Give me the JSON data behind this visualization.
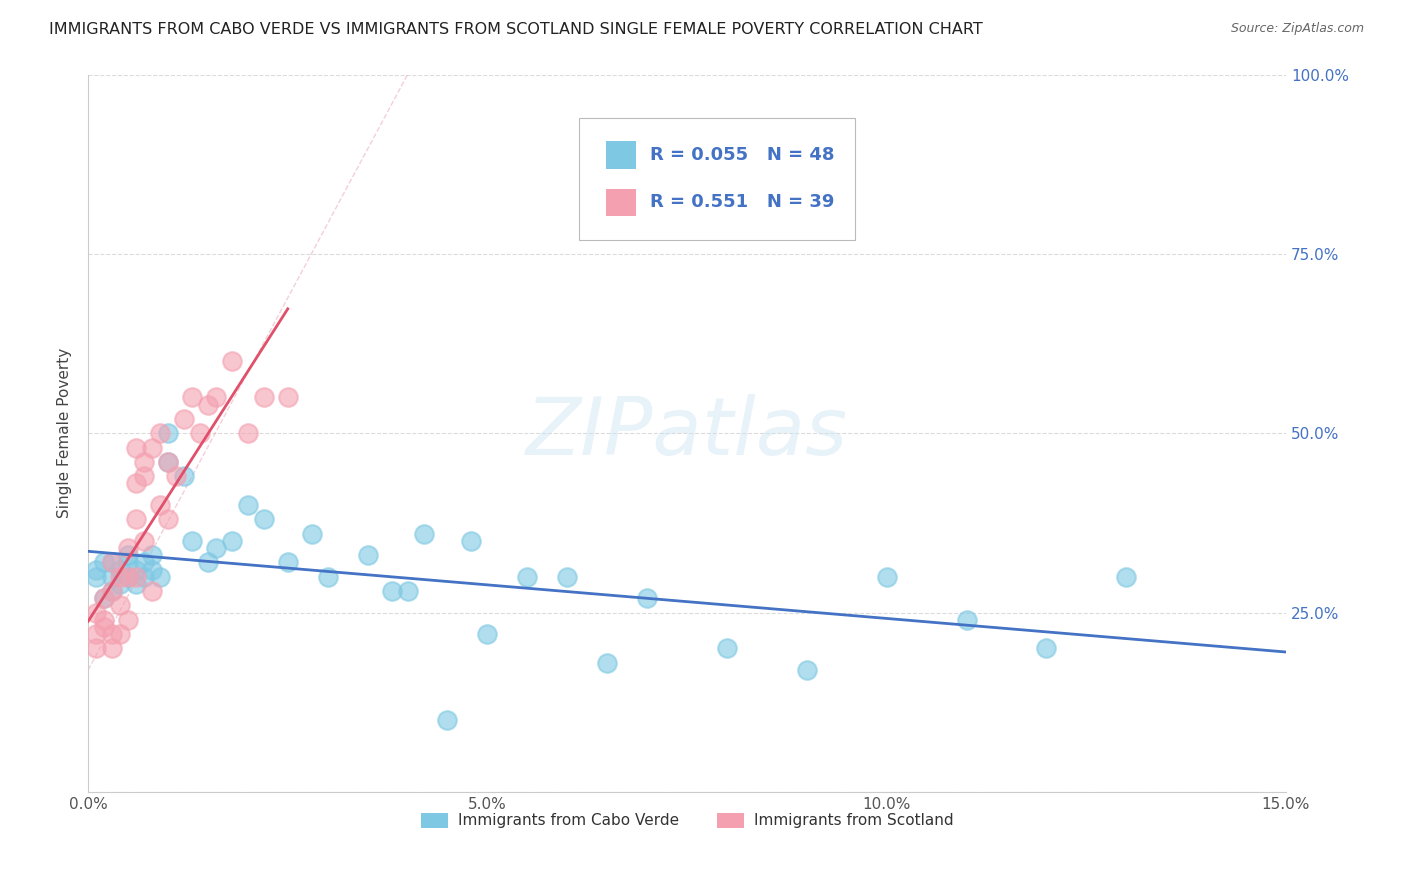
{
  "title": "IMMIGRANTS FROM CABO VERDE VS IMMIGRANTS FROM SCOTLAND SINGLE FEMALE POVERTY CORRELATION CHART",
  "source": "Source: ZipAtlas.com",
  "ylabel": "Single Female Poverty",
  "legend_entry1": "Immigrants from Cabo Verde",
  "legend_entry2": "Immigrants from Scotland",
  "r1": 0.055,
  "n1": 48,
  "r2": 0.551,
  "n2": 39,
  "xlim": [
    0,
    0.15
  ],
  "ylim": [
    0,
    1.0
  ],
  "xtick_vals": [
    0.0,
    0.05,
    0.1,
    0.15
  ],
  "xtick_labels": [
    "0.0%",
    "5.0%",
    "10.0%",
    "15.0%"
  ],
  "ytick_vals": [
    0.0,
    0.25,
    0.5,
    0.75,
    1.0
  ],
  "ytick_labels_right": [
    "",
    "25.0%",
    "50.0%",
    "75.0%",
    "100.0%"
  ],
  "watermark": "ZIPatlas",
  "cabo_verde_x": [
    0.001,
    0.001,
    0.002,
    0.002,
    0.003,
    0.003,
    0.003,
    0.004,
    0.004,
    0.005,
    0.005,
    0.005,
    0.006,
    0.006,
    0.007,
    0.007,
    0.008,
    0.008,
    0.009,
    0.01,
    0.01,
    0.012,
    0.013,
    0.015,
    0.016,
    0.018,
    0.02,
    0.022,
    0.025,
    0.028,
    0.03,
    0.035,
    0.038,
    0.042,
    0.048,
    0.05,
    0.055,
    0.06,
    0.065,
    0.07,
    0.08,
    0.09,
    0.1,
    0.11,
    0.12,
    0.13,
    0.04,
    0.045
  ],
  "cabo_verde_y": [
    0.3,
    0.31,
    0.27,
    0.32,
    0.28,
    0.3,
    0.32,
    0.29,
    0.31,
    0.3,
    0.32,
    0.33,
    0.31,
    0.29,
    0.32,
    0.3,
    0.31,
    0.33,
    0.3,
    0.46,
    0.5,
    0.44,
    0.35,
    0.32,
    0.34,
    0.35,
    0.4,
    0.38,
    0.32,
    0.36,
    0.3,
    0.33,
    0.28,
    0.36,
    0.35,
    0.22,
    0.3,
    0.3,
    0.18,
    0.27,
    0.2,
    0.17,
    0.3,
    0.24,
    0.2,
    0.3,
    0.28,
    0.1
  ],
  "scotland_x": [
    0.001,
    0.001,
    0.001,
    0.002,
    0.002,
    0.002,
    0.003,
    0.003,
    0.003,
    0.003,
    0.004,
    0.004,
    0.004,
    0.005,
    0.005,
    0.005,
    0.006,
    0.006,
    0.006,
    0.006,
    0.007,
    0.007,
    0.007,
    0.008,
    0.008,
    0.009,
    0.009,
    0.01,
    0.01,
    0.011,
    0.012,
    0.013,
    0.014,
    0.015,
    0.016,
    0.018,
    0.02,
    0.022,
    0.025
  ],
  "scotland_y": [
    0.22,
    0.25,
    0.2,
    0.23,
    0.27,
    0.24,
    0.2,
    0.22,
    0.28,
    0.32,
    0.26,
    0.3,
    0.22,
    0.3,
    0.34,
    0.24,
    0.3,
    0.38,
    0.43,
    0.48,
    0.35,
    0.44,
    0.46,
    0.28,
    0.48,
    0.4,
    0.5,
    0.38,
    0.46,
    0.44,
    0.52,
    0.55,
    0.5,
    0.54,
    0.55,
    0.6,
    0.5,
    0.55,
    0.55
  ],
  "color_cabo": "#7ec8e3",
  "color_scotland": "#f4a0b0",
  "color_line_cabo": "#4472c4",
  "color_line_scotland": "#e0506a",
  "color_r_text": "#4472c4",
  "color_n_text": "#4472c4",
  "grid_color": "#cccccc",
  "background_color": "#ffffff",
  "title_fontsize": 11.5,
  "axis_label_fontsize": 11,
  "tick_fontsize": 11,
  "legend_fontsize": 11
}
